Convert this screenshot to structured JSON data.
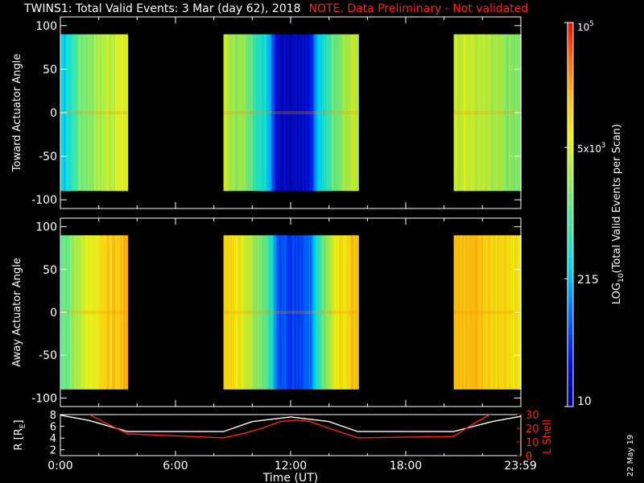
{
  "title": {
    "main": "TWINS1: Total Valid Events:  3 Mar (day  62), 2018",
    "note": "NOTE. Data Preliminary - Not validated"
  },
  "footer": {
    "date_stamp": "22 May 19"
  },
  "chart_data": [
    {
      "type": "heatmap",
      "ylabel": "Toward Actuator Angle",
      "ylim": [
        -110,
        110
      ],
      "yticks": [
        100,
        50,
        0,
        -50,
        -100
      ],
      "data_range_y": [
        -90,
        90
      ],
      "time_blocks_hours": [
        [
          0.0,
          3.5
        ],
        [
          8.5,
          15.5
        ],
        [
          20.5,
          23.99
        ]
      ],
      "intensity_profile": {
        "times_hours": [
          0.0,
          1.0,
          2.5,
          3.4,
          8.6,
          9.8,
          10.9,
          11.2,
          12.0,
          13.0,
          13.3,
          14.3,
          15.4,
          20.6,
          22.0,
          23.8
        ],
        "values": [
          2.3,
          3.2,
          3.6,
          3.7,
          3.6,
          3.1,
          2.3,
          1.3,
          1.2,
          1.35,
          2.4,
          3.2,
          3.6,
          3.7,
          3.5,
          3.2
        ]
      }
    },
    {
      "type": "heatmap",
      "ylabel": "Away Actuator Angle",
      "ylim": [
        -110,
        110
      ],
      "yticks": [
        100,
        50,
        0,
        -50,
        -100
      ],
      "data_range_y": [
        -90,
        90
      ],
      "time_blocks_hours": [
        [
          0.0,
          3.5
        ],
        [
          8.5,
          15.5
        ],
        [
          20.5,
          23.99
        ]
      ],
      "intensity_profile": {
        "times_hours": [
          0.0,
          1.0,
          2.5,
          3.4,
          8.6,
          9.8,
          10.9,
          11.3,
          12.0,
          13.0,
          13.4,
          14.3,
          15.4,
          20.6,
          22.0,
          23.8
        ],
        "values": [
          3.0,
          3.6,
          4.1,
          4.2,
          4.1,
          3.6,
          2.8,
          1.8,
          1.7,
          1.9,
          2.8,
          3.8,
          4.2,
          4.2,
          4.1,
          3.9
        ]
      }
    },
    {
      "type": "line",
      "xlabel": "Time (UT)",
      "xlim": [
        0,
        24
      ],
      "xtick_values": [
        0,
        6,
        12,
        18,
        23.983
      ],
      "xtick_labels": [
        "0:00",
        "6:00",
        "12:00",
        "18:00",
        "23:59"
      ],
      "left_axis": {
        "label": "R [R",
        "label_sub": "E",
        "label_end": "]",
        "ylim": [
          1,
          8
        ],
        "yticks": [
          2,
          4,
          6,
          8
        ],
        "color": "#ffffff"
      },
      "right_axis": {
        "label": "L Shell",
        "ylim": [
          0,
          30
        ],
        "yticks": [
          0,
          10,
          20,
          30
        ],
        "color": "#ff2020"
      },
      "series": [
        {
          "axis": "left",
          "color": "#ffffff",
          "x": [
            0,
            1.5,
            3.5,
            8.5,
            10,
            12,
            14,
            15.5,
            20.5,
            22.5,
            24
          ],
          "y": [
            7.9,
            7.0,
            5.1,
            5.1,
            6.8,
            7.6,
            6.8,
            5.1,
            5.1,
            6.8,
            7.7
          ]
        },
        {
          "axis": "right",
          "color": "#ff2020",
          "x": [
            1.5,
            2.2,
            3.5,
            8.5,
            9.5,
            10.5,
            11.5,
            12.3,
            13.0,
            14.0,
            15.5,
            20.5,
            21.5,
            22.5
          ],
          "y": [
            30,
            25,
            16,
            13,
            16,
            20,
            25,
            26,
            25,
            20,
            13,
            14,
            23,
            31
          ]
        }
      ]
    }
  ],
  "colorbar": {
    "label": "LOG",
    "label_sub": "10",
    "label_end": "(Total Valid Events per Scan)",
    "range_log10": [
      1,
      5
    ],
    "ticks": [
      {
        "value_log10": 1,
        "label": "10"
      },
      {
        "value_log10": 2.332,
        "label": "215"
      },
      {
        "value_log10": 3.699,
        "label": "5x10",
        "sup": "3"
      },
      {
        "value_log10": 5,
        "label": "10",
        "sup": "5"
      }
    ]
  }
}
